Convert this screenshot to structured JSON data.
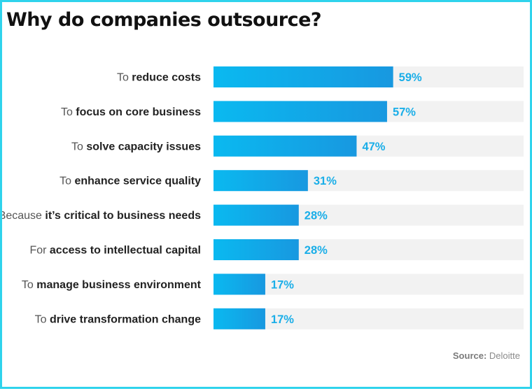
{
  "title": "Why do companies outsource?",
  "source": {
    "label": "Source:",
    "name": "Deloitte"
  },
  "colors": {
    "bar_start": "#0ab9f0",
    "bar_end": "#1898e0",
    "track": "#f2f2f2",
    "value": "#1aaee8",
    "border": "#2fd3ec"
  },
  "chart_data": {
    "type": "bar",
    "orientation": "horizontal",
    "title": "Why do companies outsource?",
    "xlim": [
      0,
      100
    ],
    "unit": "%",
    "categories": [
      {
        "prefix": "To ",
        "emph": "reduce costs",
        "value": 59,
        "label": "59%"
      },
      {
        "prefix": "To ",
        "emph": "focus on core business",
        "value": 57,
        "label": "57%"
      },
      {
        "prefix": "To ",
        "emph": "solve capacity issues",
        "value": 47,
        "label": "47%"
      },
      {
        "prefix": "To ",
        "emph": "enhance service quality",
        "value": 31,
        "label": "31%"
      },
      {
        "prefix": "Because ",
        "emph": "it’s critical to business needs",
        "value": 28,
        "label": "28%"
      },
      {
        "prefix": "For ",
        "emph": "access to intellectual capital",
        "value": 28,
        "label": "28%"
      },
      {
        "prefix": "To ",
        "emph": "manage business environment",
        "value": 17,
        "label": "17%"
      },
      {
        "prefix": "To ",
        "emph": "drive transformation change",
        "value": 17,
        "label": "17%"
      }
    ]
  }
}
